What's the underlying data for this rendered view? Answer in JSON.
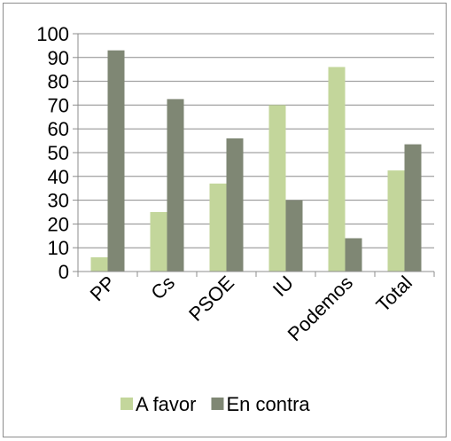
{
  "chart_data": {
    "type": "bar",
    "categories": [
      "PP",
      "Cs",
      "PSOE",
      "IU",
      "Podemos",
      "Total"
    ],
    "series": [
      {
        "name": "A favor",
        "values": [
          6,
          25,
          37,
          70,
          86,
          42.5
        ],
        "color": "#c3d69b"
      },
      {
        "name": "En contra",
        "values": [
          93,
          72.5,
          56,
          30,
          14,
          53.5
        ],
        "color": "#7f8774"
      }
    ],
    "ylim": [
      0,
      100
    ],
    "yticks": [
      0,
      10,
      20,
      30,
      40,
      50,
      60,
      70,
      80,
      90,
      100
    ],
    "grid": true,
    "gridColor": "#8c8c8c",
    "legend": "bottom",
    "title": "",
    "xlabel": "",
    "ylabel": ""
  }
}
